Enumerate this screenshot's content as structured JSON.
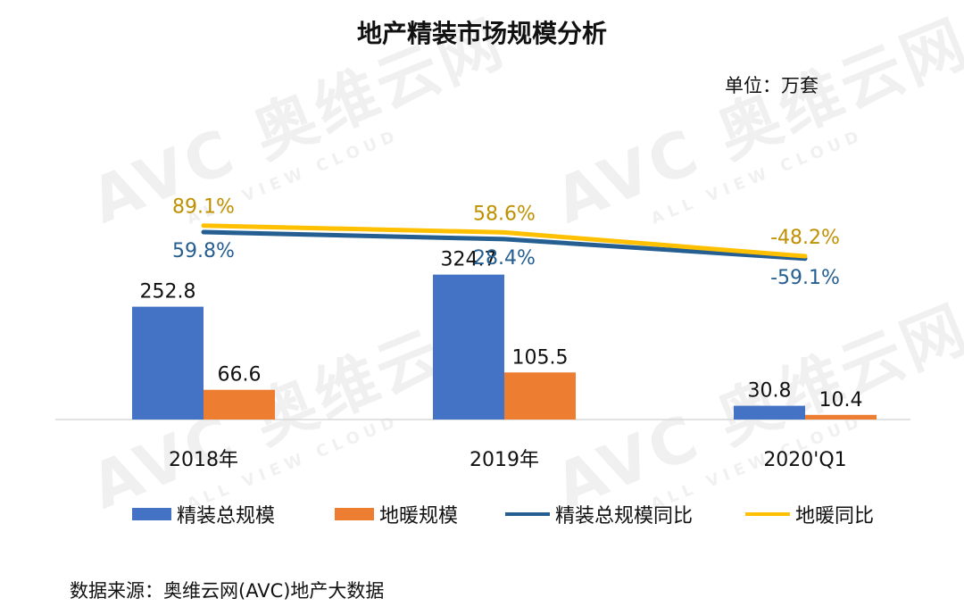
{
  "chart_data": {
    "type": "bar",
    "title": "地产精装市场规模分析",
    "unit": "单位：万套",
    "source": "数据来源：奥维云网(AVC)地产大数据",
    "categories": [
      "2018年",
      "2019年",
      "2020'Q1"
    ],
    "series": [
      {
        "name": "精装总规模",
        "kind": "bar",
        "color": "#4472C4",
        "values": [
          252.8,
          324.7,
          30.8
        ],
        "labels": [
          "252.8",
          "324.7",
          "30.8"
        ]
      },
      {
        "name": "地暖规模",
        "kind": "bar",
        "color": "#ED7D31",
        "values": [
          66.6,
          105.5,
          10.4
        ],
        "labels": [
          "66.6",
          "105.5",
          "10.4"
        ]
      },
      {
        "name": "精装总规模同比",
        "kind": "line",
        "color": "#255E91",
        "values": [
          59.8,
          28.4,
          -59.1
        ],
        "labels": [
          "59.8%",
          "28.4%",
          "-59.1%"
        ]
      },
      {
        "name": "地暖同比",
        "kind": "line",
        "color": "#FFC000",
        "values": [
          89.1,
          58.6,
          -48.2
        ],
        "labels": [
          "89.1%",
          "58.6%",
          "-48.2%"
        ]
      }
    ],
    "legend_position": "bottom",
    "grid": false
  },
  "watermark": {
    "main": "AVC 奥维云网",
    "sub": "ALL VIEW CLOUD"
  }
}
